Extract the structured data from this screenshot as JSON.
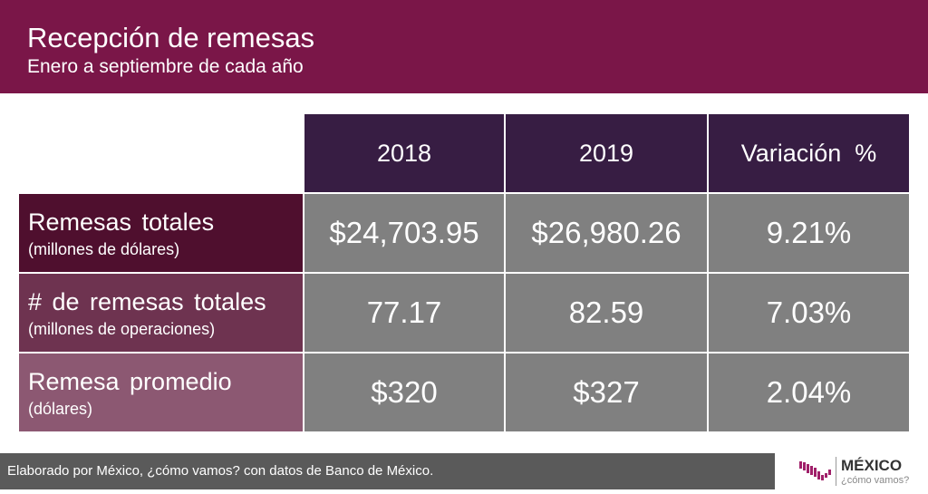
{
  "header": {
    "title": "Recepción de remesas",
    "subtitle": "Enero a septiembre de cada año"
  },
  "chart_data": {
    "type": "table",
    "columns": [
      "2018",
      "2019",
      "Variación  %"
    ],
    "rows": [
      {
        "label": "Remesas totales",
        "sublabel": "(millones de dólares)",
        "values": [
          "$24,703.95",
          "$26,980.26",
          "9.21%"
        ]
      },
      {
        "label": "# de remesas totales",
        "sublabel": "(millones de operaciones)",
        "values": [
          "77.17",
          "82.59",
          "7.03%"
        ]
      },
      {
        "label": "Remesa promedio",
        "sublabel": "(dólares)",
        "values": [
          "$320",
          "$327",
          "2.04%"
        ]
      }
    ]
  },
  "footer": {
    "source": "Elaborado por México, ¿cómo vamos? con datos de Banco de México.",
    "logo_main": "MÉXICO",
    "logo_sub": "¿cómo vamos?"
  },
  "colors": {
    "header": "#7a1648",
    "col_header": "#371d43",
    "cell": "#808080",
    "row1": "#4f0f2e",
    "row2": "#6e3350",
    "row3": "#8c5872"
  }
}
